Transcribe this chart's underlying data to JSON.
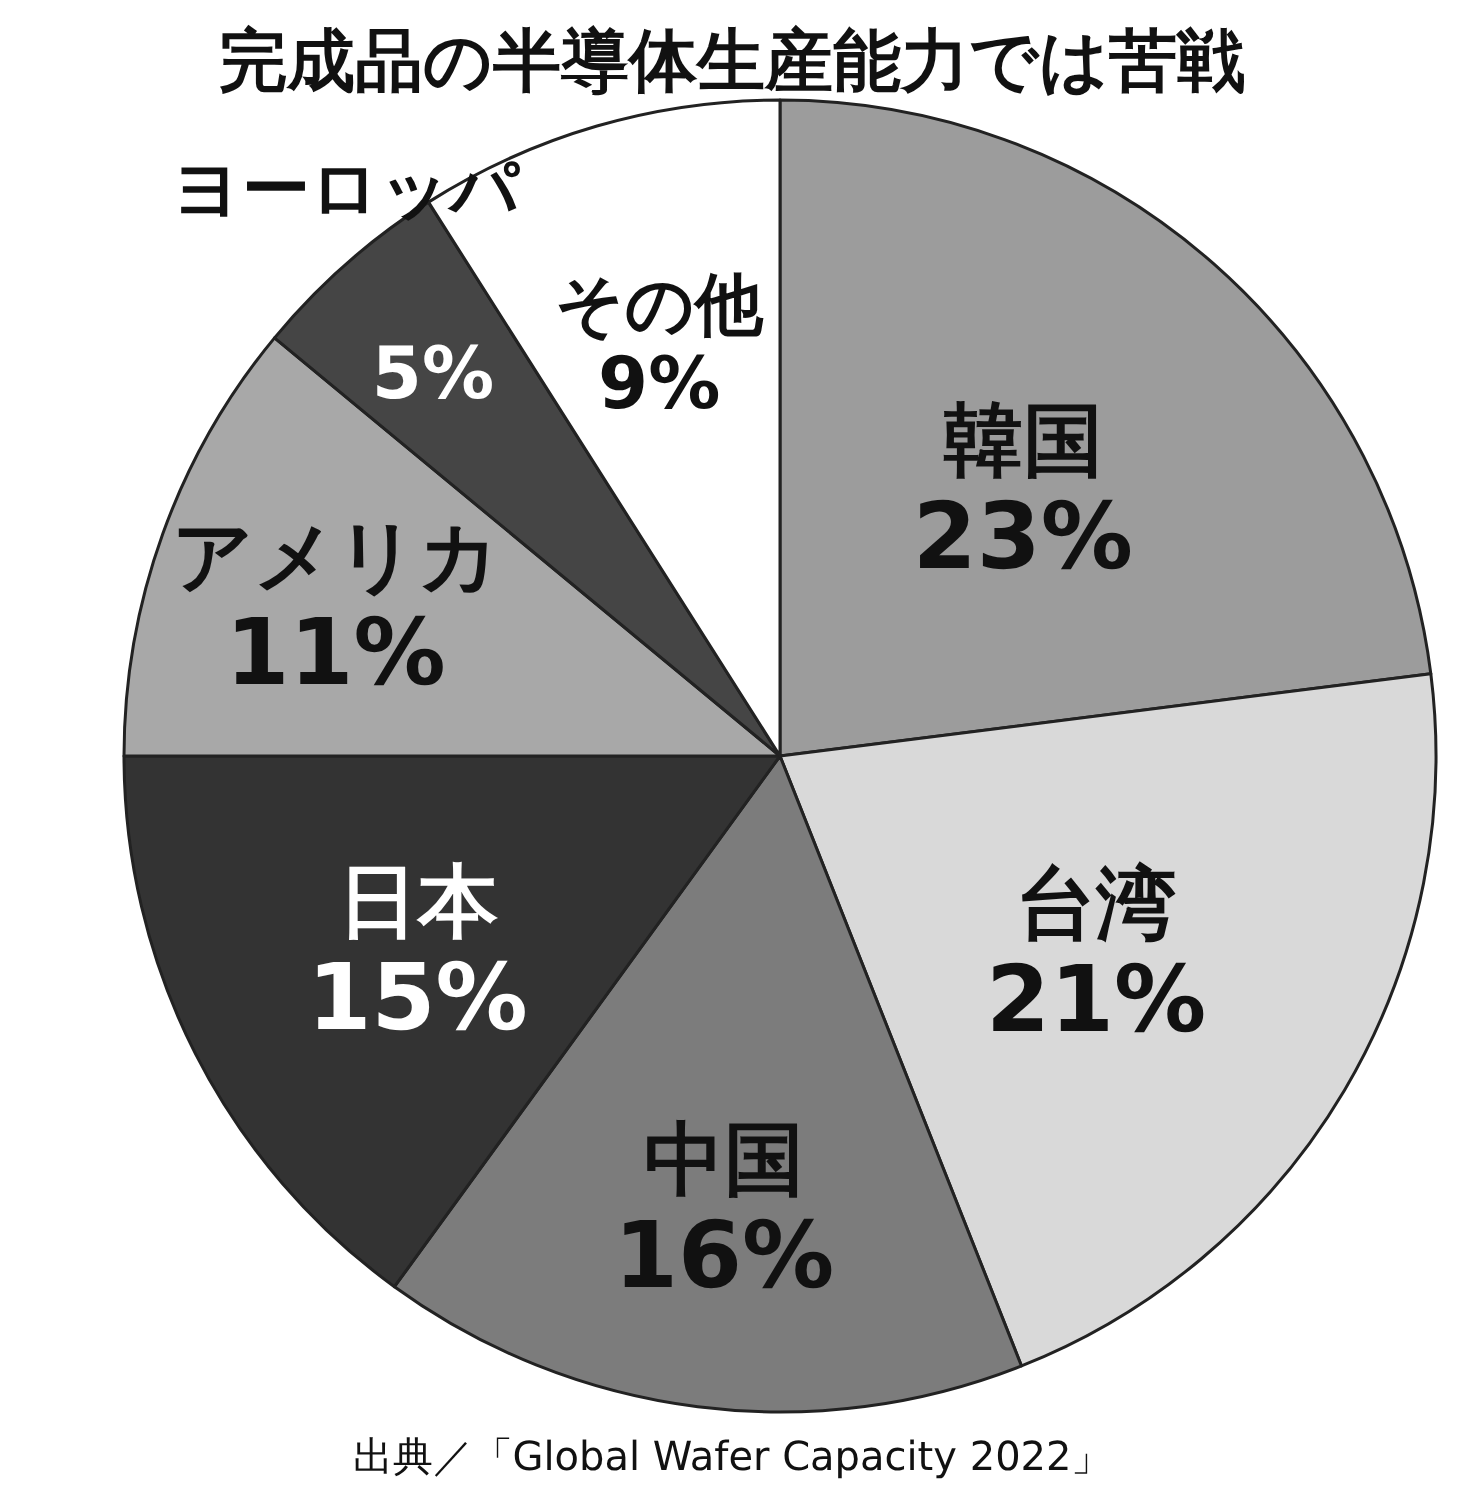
{
  "chart_data": {
    "type": "pie",
    "title": "完成品の半導体生産能力では苦戦",
    "categories": [
      "韓国",
      "台湾",
      "中国",
      "日本",
      "アメリカ",
      "ヨーロッパ",
      "その他"
    ],
    "values": [
      23,
      21,
      16,
      15,
      11,
      5,
      9
    ],
    "value_labels": [
      "23%",
      "21%",
      "16%",
      "15%",
      "11%",
      "5%",
      "9%"
    ],
    "colors": [
      "#9c9c9c",
      "#d9d9d9",
      "#7c7c7c",
      "#333333",
      "#a8a8a8",
      "#454545",
      "#ffffff"
    ],
    "annotations": [
      "出典／「Global Wafer Capacity 2022」"
    ]
  }
}
